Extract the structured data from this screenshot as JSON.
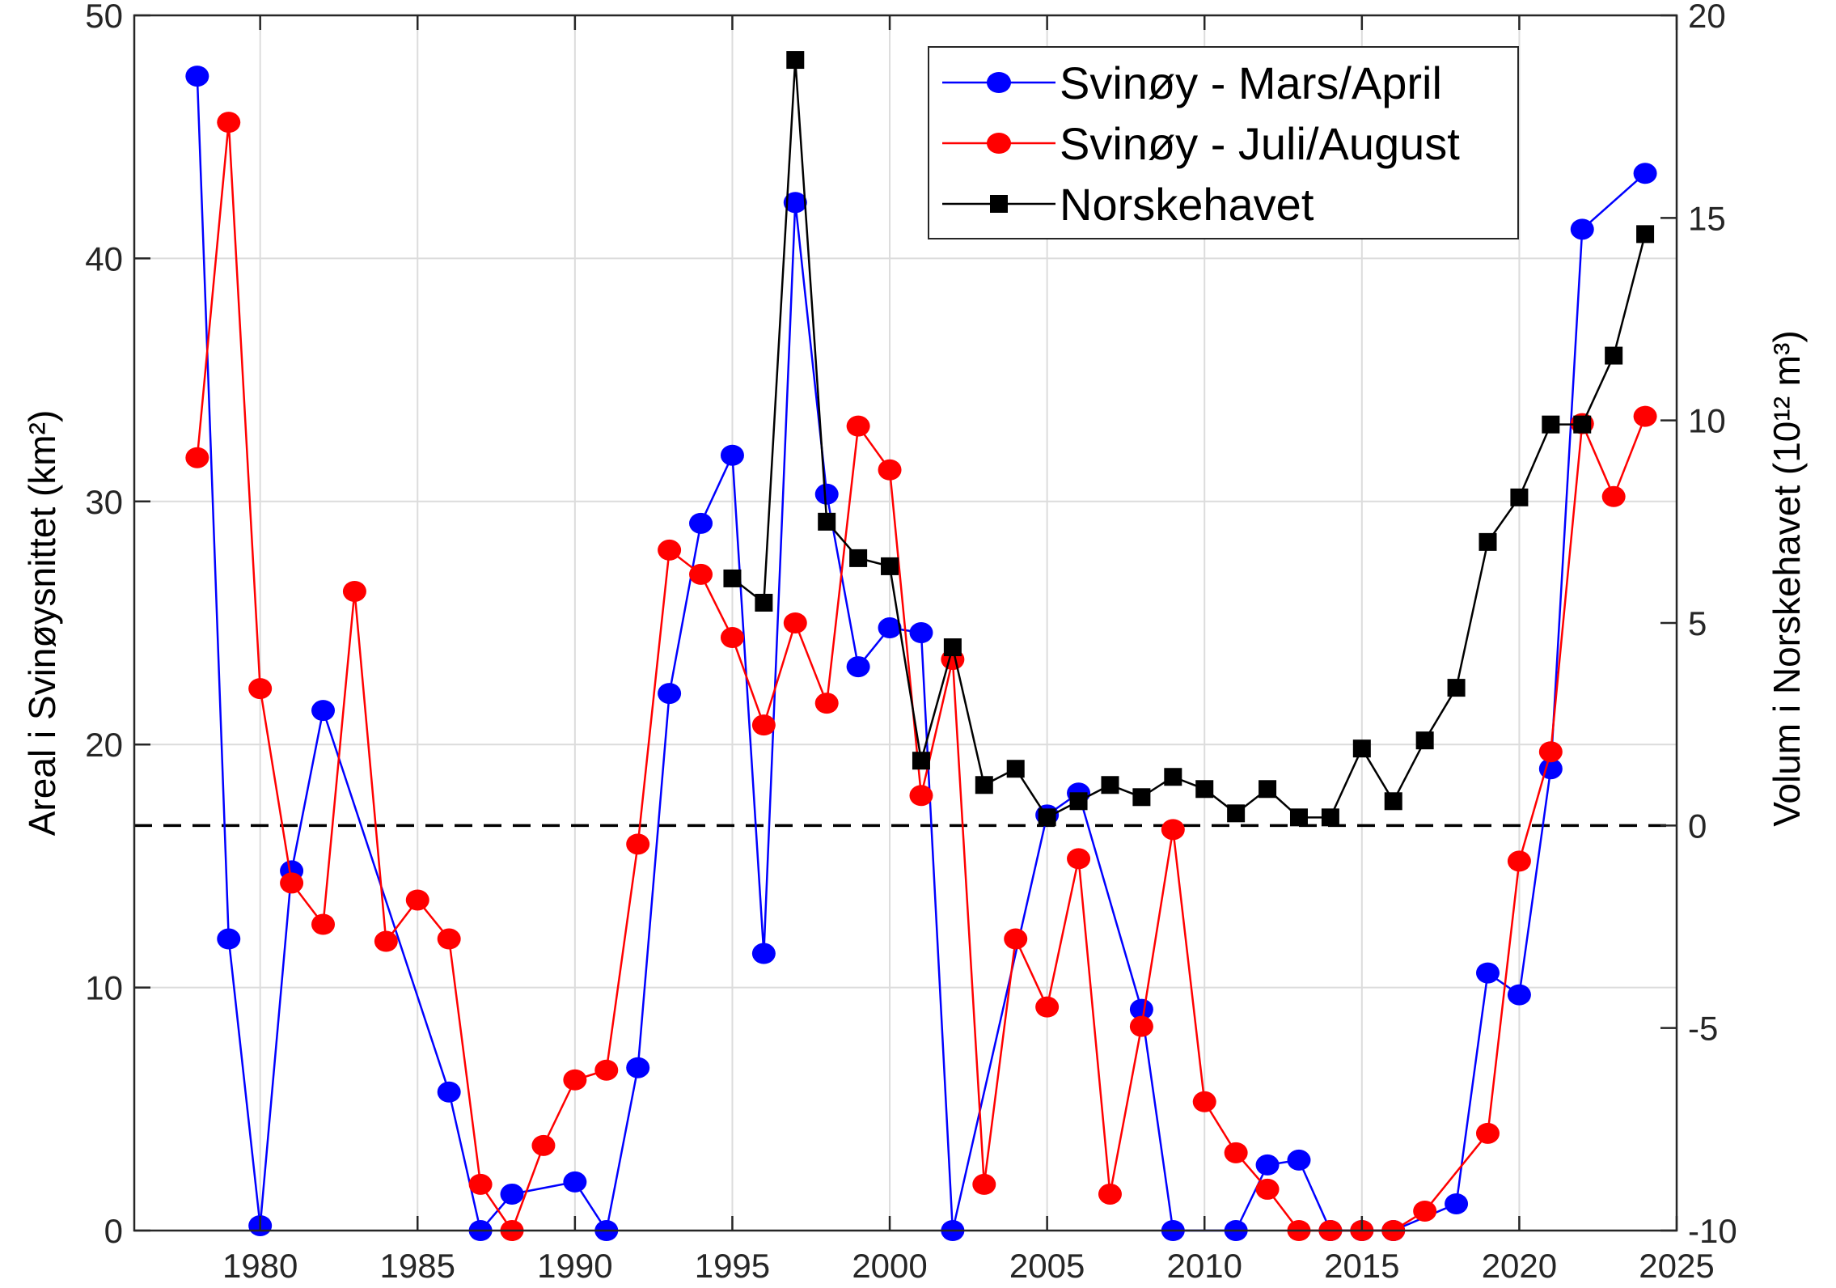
{
  "chart_data": {
    "type": "line",
    "xlabel": "",
    "ylabel": "Areal i Svinøysnittet (km²)",
    "ylabel_right": "Volum i Norskehavet (10¹² m³)",
    "xlim": [
      1976,
      2025
    ],
    "ylim": [
      0,
      50
    ],
    "ylim_right": [
      -10,
      20
    ],
    "x_ticks": [
      1980,
      1985,
      1990,
      1995,
      2000,
      2005,
      2010,
      2015,
      2020,
      2025
    ],
    "y_ticks": [
      0,
      10,
      20,
      30,
      40,
      50
    ],
    "y_ticks_right": [
      -10,
      -5,
      0,
      5,
      10,
      15,
      20
    ],
    "grid": true,
    "legend_position": "top-right",
    "reference_line": {
      "axis": "right",
      "y": 0,
      "style": "dashed",
      "color": "#000000"
    },
    "series": [
      {
        "name": "Svinøy - Mars/April",
        "axis": "left",
        "color": "#0000ff",
        "marker": "circle",
        "x": [
          1978,
          1979,
          1980,
          1981,
          1982,
          1986,
          1987,
          1988,
          1990,
          1991,
          1992,
          1993,
          1994,
          1995,
          1996,
          1997,
          1998,
          1999,
          2000,
          2001,
          2002,
          2005,
          2006,
          2008,
          2009,
          2011,
          2012,
          2013,
          2014,
          2015,
          2016,
          2018,
          2019,
          2020,
          2021,
          2022,
          2024
        ],
        "y": [
          47.5,
          12.0,
          0.2,
          14.8,
          21.4,
          5.7,
          0,
          1.5,
          2.0,
          0,
          6.7,
          22.1,
          29.1,
          31.9,
          11.4,
          42.3,
          30.3,
          23.2,
          24.8,
          24.6,
          0,
          17.1,
          18.0,
          9.1,
          0,
          0,
          2.7,
          2.9,
          0,
          0,
          0,
          1.1,
          10.6,
          9.7,
          19.0,
          41.2,
          43.5
        ]
      },
      {
        "name": "Svinøy - Juli/August",
        "axis": "left",
        "color": "#ff0000",
        "marker": "circle",
        "x": [
          1978,
          1979,
          1980,
          1981,
          1982,
          1983,
          1984,
          1985,
          1986,
          1987,
          1988,
          1989,
          1990,
          1991,
          1992,
          1993,
          1994,
          1995,
          1996,
          1997,
          1998,
          1999,
          2000,
          2001,
          2002,
          2003,
          2004,
          2005,
          2006,
          2007,
          2008,
          2009,
          2010,
          2011,
          2012,
          2013,
          2014,
          2015,
          2016,
          2017,
          2019,
          2020,
          2021,
          2022,
          2023,
          2024
        ],
        "y": [
          31.8,
          45.6,
          22.3,
          14.3,
          12.6,
          26.3,
          11.9,
          13.6,
          12.0,
          1.9,
          0,
          3.5,
          6.2,
          6.6,
          15.9,
          28.0,
          27.0,
          24.4,
          20.8,
          25.0,
          21.7,
          33.1,
          31.3,
          17.9,
          23.5,
          1.9,
          12.0,
          9.2,
          15.3,
          1.5,
          8.4,
          16.5,
          5.3,
          3.2,
          1.7,
          0,
          0,
          0,
          0,
          0.8,
          4.0,
          15.2,
          19.7,
          33.2,
          30.2,
          33.5
        ]
      },
      {
        "name": "Norskehavet",
        "axis": "right",
        "color": "#000000",
        "marker": "square",
        "x": [
          1995,
          1996,
          1997,
          1998,
          1999,
          2000,
          2001,
          2002,
          2003,
          2004,
          2005,
          2006,
          2007,
          2008,
          2009,
          2010,
          2011,
          2012,
          2013,
          2014,
          2015,
          2016,
          2017,
          2018,
          2019,
          2020,
          2021,
          2022,
          2023,
          2024
        ],
        "y": [
          6.1,
          5.5,
          18.9,
          7.5,
          6.6,
          6.4,
          1.6,
          4.4,
          1.0,
          1.4,
          0.2,
          0.6,
          1.0,
          0.7,
          1.2,
          0.9,
          0.3,
          0.9,
          0.2,
          0.2,
          1.9,
          0.6,
          2.1,
          3.4,
          7.0,
          8.1,
          9.9,
          9.9,
          11.6,
          14.6
        ]
      }
    ]
  }
}
